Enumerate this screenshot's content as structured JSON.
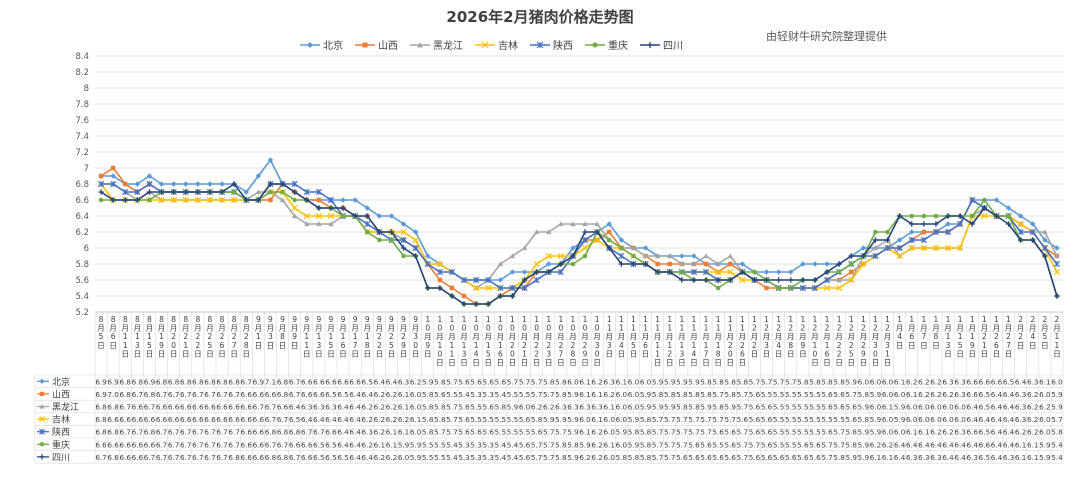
{
  "title": "2026年2月猪肉价格走势图",
  "source_note": "由轻财牛研究院整理提供",
  "chart_data": {
    "type": "line",
    "title": "2026年2月猪肉价格走势图",
    "ylim": [
      5.2,
      8.4
    ],
    "yticks": [
      "5.2",
      "5.4",
      "5.6",
      "5.8",
      "6",
      "6.2",
      "6.4",
      "6.6",
      "6.8",
      "7",
      "7.2",
      "7.4",
      "7.6",
      "7.8",
      "8",
      "8.2",
      "8.4"
    ],
    "grid": true,
    "legend_position": "top",
    "categories": [
      [
        "8月",
        "5日"
      ],
      [
        "8月",
        "6日"
      ],
      [
        "8月",
        "11日"
      ],
      [
        "8月",
        "13日"
      ],
      [
        "8月",
        "15日"
      ],
      [
        "8月",
        "19日"
      ],
      [
        "8月",
        "20日"
      ],
      [
        "8月",
        "21日"
      ],
      [
        "8月",
        "22日"
      ],
      [
        "8月",
        "25日"
      ],
      [
        "8月",
        "26日"
      ],
      [
        "8月",
        "27日"
      ],
      [
        "8月",
        "28日"
      ],
      [
        "9月",
        "1日"
      ],
      [
        "9月",
        "3日"
      ],
      [
        "9月",
        "8日"
      ],
      [
        "9月",
        "9日"
      ],
      [
        "9月",
        "11日"
      ],
      [
        "9月",
        "13日"
      ],
      [
        "9月",
        "15日"
      ],
      [
        "9月",
        "16日"
      ],
      [
        "9月",
        "17日"
      ],
      [
        "9月",
        "18日"
      ],
      [
        "9月",
        "22日"
      ],
      [
        "9月",
        "25日"
      ],
      [
        "9月",
        "29日"
      ],
      [
        "9月",
        "30日"
      ],
      [
        "10月",
        "9日"
      ],
      [
        "10月",
        "10日"
      ],
      [
        "10月",
        "11日"
      ],
      [
        "10月",
        "13日"
      ],
      [
        "10月",
        "14日"
      ],
      [
        "10月",
        "15日"
      ],
      [
        "10月",
        "16日"
      ],
      [
        "10月",
        "20日"
      ],
      [
        "10月",
        "21日"
      ],
      [
        "10月",
        "22日"
      ],
      [
        "10月",
        "23日"
      ],
      [
        "10月",
        "27日"
      ],
      [
        "10月",
        "28日"
      ],
      [
        "10月",
        "29日"
      ],
      [
        "10月",
        "30日"
      ],
      [
        "11月",
        "3日"
      ],
      [
        "11月",
        "4日"
      ],
      [
        "11月",
        "5日"
      ],
      [
        "11月",
        "6日"
      ],
      [
        "11月",
        "11日"
      ],
      [
        "11月",
        "12日"
      ],
      [
        "11月",
        "13日"
      ],
      [
        "11月",
        "14日"
      ],
      [
        "11月",
        "17日"
      ],
      [
        "11月",
        "18日"
      ],
      [
        "11月",
        "20日"
      ],
      [
        "11月",
        "26日"
      ],
      [
        "12月",
        "2日"
      ],
      [
        "12月",
        "3日"
      ],
      [
        "12月",
        "4日"
      ],
      [
        "12月",
        "8日"
      ],
      [
        "12月",
        "9日"
      ],
      [
        "12月",
        "10日"
      ],
      [
        "12月",
        "16日"
      ],
      [
        "12月",
        "22日"
      ],
      [
        "12月",
        "25日"
      ],
      [
        "12月",
        "29日"
      ],
      [
        "12月",
        "30日"
      ],
      [
        "12月",
        "31日"
      ],
      [
        "1月",
        "4日"
      ],
      [
        "1月",
        "6日"
      ],
      [
        "1月",
        "7日"
      ],
      [
        "1月",
        "8日"
      ],
      [
        "1月",
        "13日"
      ],
      [
        "1月",
        "15日"
      ],
      [
        "1月",
        "19日"
      ],
      [
        "1月",
        "21日"
      ],
      [
        "1月",
        "26日"
      ],
      [
        "1月",
        "27日"
      ],
      [
        "2月",
        "2日"
      ],
      [
        "2月",
        "4日"
      ],
      [
        "2月",
        "5日"
      ],
      [
        "2月",
        "11日"
      ]
    ],
    "series": [
      {
        "name": "北京",
        "color": "#5B9BD5",
        "marker": "diamond",
        "values": [
          6.9,
          6.9,
          6.8,
          6.8,
          6.9,
          6.8,
          6.8,
          6.8,
          6.8,
          6.8,
          6.8,
          6.8,
          6.7,
          6.9,
          7.1,
          6.8,
          6.7,
          6.6,
          6.6,
          6.6,
          6.6,
          6.6,
          6.5,
          6.4,
          6.4,
          6.3,
          6.2,
          5.9,
          5.8,
          5.7,
          5.6,
          5.6,
          5.6,
          5.6,
          5.7,
          5.7,
          5.7,
          5.8,
          5.8,
          6.0,
          6.1,
          6.2,
          6.3,
          6.1,
          6.0,
          6.0,
          5.9,
          5.9,
          5.9,
          5.9,
          5.8,
          5.8,
          5.8,
          5.8,
          5.7,
          5.7,
          5.7,
          5.7,
          5.8,
          5.8,
          5.8,
          5.8,
          5.9,
          6.0,
          6.0,
          6.0,
          6.1,
          6.2,
          6.2,
          6.2,
          6.3,
          6.3,
          6.6,
          6.6,
          6.6,
          6.5,
          6.4,
          6.3,
          6.1,
          6.0
        ]
      },
      {
        "name": "山西",
        "color": "#ED7D31",
        "marker": "square",
        "values": [
          6.9,
          7.0,
          6.8,
          6.7,
          6.8,
          6.7,
          6.7,
          6.7,
          6.7,
          6.7,
          6.7,
          6.7,
          6.6,
          6.6,
          6.6,
          6.8,
          6.7,
          6.6,
          6.6,
          6.5,
          6.5,
          6.4,
          6.4,
          6.2,
          6.2,
          6.1,
          6.0,
          5.8,
          5.6,
          5.5,
          5.4,
          5.3,
          5.3,
          5.4,
          5.5,
          5.5,
          5.7,
          5.7,
          5.8,
          5.9,
          6.1,
          6.1,
          6.2,
          6.0,
          6.0,
          5.9,
          5.8,
          5.8,
          5.8,
          5.8,
          5.8,
          5.7,
          5.8,
          5.7,
          5.6,
          5.5,
          5.5,
          5.5,
          5.5,
          5.5,
          5.6,
          5.6,
          5.7,
          5.8,
          5.9,
          6.0,
          6.0,
          6.1,
          6.2,
          6.2,
          6.2,
          6.3,
          6.6,
          6.5,
          6.4,
          6.4,
          6.3,
          6.2,
          6.0,
          5.9
        ]
      },
      {
        "name": "黑龙江",
        "color": "#A5A5A5",
        "marker": "triangle",
        "values": [
          6.8,
          6.8,
          6.7,
          6.6,
          6.7,
          6.6,
          6.6,
          6.6,
          6.6,
          6.6,
          6.6,
          6.6,
          6.6,
          6.7,
          6.7,
          6.6,
          6.4,
          6.3,
          6.3,
          6.3,
          6.4,
          6.4,
          6.2,
          6.2,
          6.2,
          6.1,
          6.0,
          5.8,
          5.8,
          5.7,
          5.6,
          5.5,
          5.6,
          5.8,
          5.9,
          6.0,
          6.2,
          6.2,
          6.3,
          6.3,
          6.3,
          6.3,
          6.1,
          6.0,
          6.0,
          5.9,
          5.9,
          5.9,
          5.8,
          5.8,
          5.9,
          5.8,
          5.9,
          5.7,
          5.6,
          5.6,
          5.5,
          5.5,
          5.5,
          5.5,
          5.6,
          5.6,
          5.6,
          5.9,
          6.0,
          6.1,
          5.9,
          6.0,
          6.0,
          6.0,
          6.0,
          6.0,
          6.4,
          6.5,
          6.4,
          6.4,
          6.3,
          6.2,
          6.2,
          5.9
        ]
      },
      {
        "name": "吉林",
        "color": "#FFC000",
        "marker": "x",
        "values": [
          6.8,
          6.6,
          6.6,
          6.6,
          6.6,
          6.6,
          6.6,
          6.6,
          6.6,
          6.6,
          6.6,
          6.6,
          6.6,
          6.6,
          6.7,
          6.7,
          6.5,
          6.4,
          6.4,
          6.4,
          6.4,
          6.4,
          6.2,
          6.2,
          6.2,
          6.2,
          6.1,
          5.8,
          5.8,
          5.7,
          5.6,
          5.5,
          5.5,
          5.5,
          5.5,
          5.6,
          5.8,
          5.9,
          5.9,
          5.9,
          6.0,
          6.1,
          6.0,
          6.0,
          5.9,
          5.8,
          5.7,
          5.7,
          5.7,
          5.7,
          5.7,
          5.7,
          5.7,
          5.6,
          5.6,
          5.6,
          5.5,
          5.5,
          5.5,
          5.5,
          5.5,
          5.5,
          5.6,
          5.8,
          5.9,
          6.0,
          5.9,
          6.0,
          6.0,
          6.0,
          6.0,
          6.0,
          6.4,
          6.4,
          6.4,
          6.4,
          6.3,
          6.2,
          6.0,
          5.7
        ]
      },
      {
        "name": "陕西",
        "color": "#4472C4",
        "marker": "star",
        "values": [
          6.8,
          6.8,
          6.7,
          6.7,
          6.8,
          6.7,
          6.7,
          6.7,
          6.7,
          6.7,
          6.7,
          6.7,
          6.6,
          6.6,
          6.8,
          6.8,
          6.8,
          6.7,
          6.7,
          6.6,
          6.4,
          6.4,
          6.3,
          6.2,
          6.1,
          6.1,
          6.0,
          5.8,
          5.7,
          5.7,
          5.6,
          5.6,
          5.6,
          5.5,
          5.5,
          5.5,
          5.6,
          5.7,
          5.7,
          5.9,
          6.1,
          6.2,
          6.0,
          5.9,
          5.8,
          5.8,
          5.7,
          5.7,
          5.7,
          5.7,
          5.7,
          5.6,
          5.6,
          5.7,
          5.6,
          5.6,
          5.5,
          5.5,
          5.5,
          5.5,
          5.6,
          5.7,
          5.8,
          5.9,
          5.9,
          6.0,
          6.0,
          6.1,
          6.1,
          6.2,
          6.2,
          6.3,
          6.6,
          6.5,
          6.4,
          6.4,
          6.2,
          6.2,
          6.0,
          5.8
        ]
      },
      {
        "name": "重庆",
        "color": "#70AD47",
        "marker": "circle",
        "values": [
          6.6,
          6.6,
          6.6,
          6.6,
          6.6,
          6.7,
          6.7,
          6.7,
          6.7,
          6.7,
          6.7,
          6.7,
          6.6,
          6.6,
          6.7,
          6.7,
          6.6,
          6.6,
          6.5,
          6.5,
          6.4,
          6.4,
          6.2,
          6.1,
          6.1,
          5.9,
          5.9,
          5.5,
          5.5,
          5.4,
          5.3,
          5.3,
          5.3,
          5.4,
          5.4,
          5.6,
          5.7,
          5.7,
          5.8,
          5.8,
          5.9,
          6.2,
          6.1,
          6.0,
          5.9,
          5.8,
          5.7,
          5.7,
          5.7,
          5.6,
          5.6,
          5.5,
          5.6,
          5.7,
          5.7,
          5.6,
          5.5,
          5.5,
          5.6,
          5.6,
          5.7,
          5.7,
          5.8,
          5.9,
          6.2,
          6.2,
          6.4,
          6.4,
          6.4,
          6.4,
          6.4,
          6.4,
          6.4,
          6.6,
          6.4,
          6.4,
          6.1,
          6.1,
          5.9,
          5.4
        ]
      },
      {
        "name": "四川",
        "color": "#264478",
        "marker": "plus",
        "values": [
          6.7,
          6.6,
          6.6,
          6.6,
          6.7,
          6.7,
          6.7,
          6.7,
          6.7,
          6.7,
          6.7,
          6.8,
          6.6,
          6.6,
          6.8,
          6.8,
          6.7,
          6.6,
          6.5,
          6.5,
          6.5,
          6.4,
          6.4,
          6.2,
          6.2,
          6.0,
          5.9,
          5.5,
          5.5,
          5.4,
          5.3,
          5.3,
          5.3,
          5.4,
          5.4,
          5.6,
          5.7,
          5.7,
          5.8,
          5.9,
          6.2,
          6.2,
          6.0,
          5.8,
          5.8,
          5.8,
          5.7,
          5.7,
          5.6,
          5.6,
          5.6,
          5.6,
          5.6,
          5.7,
          5.6,
          5.6,
          5.6,
          5.6,
          5.6,
          5.6,
          5.7,
          5.8,
          5.9,
          5.9,
          6.1,
          6.1,
          6.4,
          6.3,
          6.3,
          6.3,
          6.4,
          6.4,
          6.3,
          6.5,
          6.4,
          6.3,
          6.1,
          6.1,
          5.9,
          5.4
        ]
      }
    ]
  }
}
